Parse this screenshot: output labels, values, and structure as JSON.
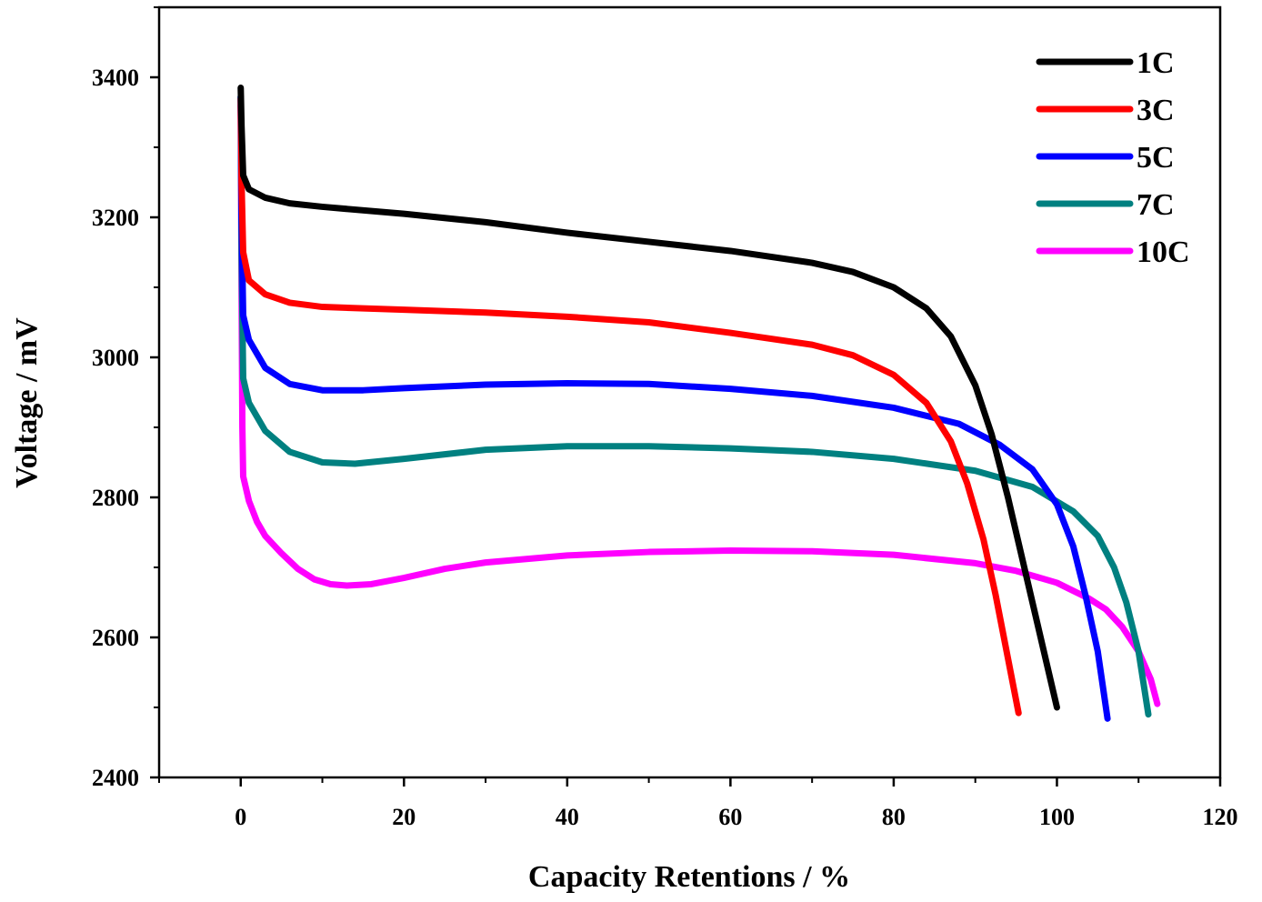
{
  "chart_data": {
    "type": "line",
    "title": "",
    "xlabel": "Capacity Retentions / %",
    "ylabel": "Voltage / mV",
    "xlim": [
      -10,
      120
    ],
    "ylim": [
      2400,
      3500
    ],
    "x_ticks": [
      0,
      20,
      40,
      60,
      80,
      100,
      120
    ],
    "y_ticks": [
      2400,
      2600,
      2800,
      3000,
      3200,
      3400
    ],
    "x_tick_labels": [
      "0",
      "20",
      "40",
      "60",
      "80",
      "100",
      "120"
    ],
    "y_tick_labels": [
      "2400",
      "2600",
      "2800",
      "3000",
      "3200",
      "3400"
    ],
    "grid": false,
    "legend_position": "top-right",
    "series": [
      {
        "name": "1C",
        "color": "#000000",
        "x": [
          0,
          0.1,
          0.3,
          1,
          3,
          6,
          10,
          20,
          30,
          40,
          50,
          60,
          70,
          75,
          80,
          84,
          87,
          90,
          92,
          94,
          96,
          98,
          100
        ],
        "y": [
          3385,
          3330,
          3260,
          3240,
          3228,
          3220,
          3215,
          3205,
          3193,
          3178,
          3165,
          3152,
          3135,
          3122,
          3100,
          3070,
          3030,
          2960,
          2890,
          2800,
          2700,
          2600,
          2500
        ]
      },
      {
        "name": "3C",
        "color": "#ff0000",
        "x": [
          0,
          0.1,
          0.3,
          1,
          3,
          6,
          10,
          15,
          20,
          30,
          40,
          50,
          60,
          70,
          75,
          80,
          84,
          87,
          89,
          91,
          92.5,
          94,
          95.3
        ],
        "y": [
          3370,
          3250,
          3150,
          3110,
          3090,
          3078,
          3072,
          3070,
          3068,
          3064,
          3058,
          3050,
          3035,
          3018,
          3003,
          2975,
          2935,
          2880,
          2820,
          2740,
          2660,
          2570,
          2492
        ]
      },
      {
        "name": "5C",
        "color": "#0000ff",
        "x": [
          0,
          0.1,
          0.3,
          1,
          3,
          6,
          10,
          15,
          20,
          30,
          40,
          50,
          60,
          70,
          80,
          88,
          93,
          97,
          100,
          102,
          103.5,
          105,
          106.2
        ],
        "y": [
          3372,
          3200,
          3060,
          3025,
          2985,
          2962,
          2953,
          2953,
          2956,
          2961,
          2963,
          2962,
          2955,
          2945,
          2928,
          2905,
          2875,
          2840,
          2790,
          2730,
          2660,
          2580,
          2484
        ]
      },
      {
        "name": "7C",
        "color": "#008080",
        "x": [
          0,
          0.1,
          0.3,
          1,
          3,
          6,
          10,
          14,
          20,
          30,
          40,
          50,
          60,
          70,
          80,
          90,
          97,
          102,
          105,
          107,
          108.5,
          110,
          111.2
        ],
        "y": [
          3372,
          3150,
          2970,
          2935,
          2895,
          2865,
          2850,
          2848,
          2855,
          2868,
          2873,
          2873,
          2870,
          2865,
          2855,
          2838,
          2815,
          2780,
          2745,
          2700,
          2650,
          2580,
          2490
        ]
      },
      {
        "name": "10C",
        "color": "#ff00ff",
        "x": [
          0,
          0.1,
          0.2,
          0.3,
          1,
          2,
          3,
          5,
          7,
          9,
          11,
          13,
          16,
          20,
          25,
          30,
          40,
          50,
          60,
          70,
          80,
          90,
          95,
          100,
          104,
          106,
          108,
          110,
          111.5,
          112.3
        ],
        "y": [
          3360,
          3100,
          2900,
          2830,
          2795,
          2765,
          2745,
          2720,
          2698,
          2683,
          2676,
          2674,
          2676,
          2685,
          2698,
          2707,
          2717,
          2722,
          2724,
          2723,
          2718,
          2706,
          2695,
          2678,
          2655,
          2640,
          2615,
          2580,
          2540,
          2505
        ]
      }
    ]
  }
}
